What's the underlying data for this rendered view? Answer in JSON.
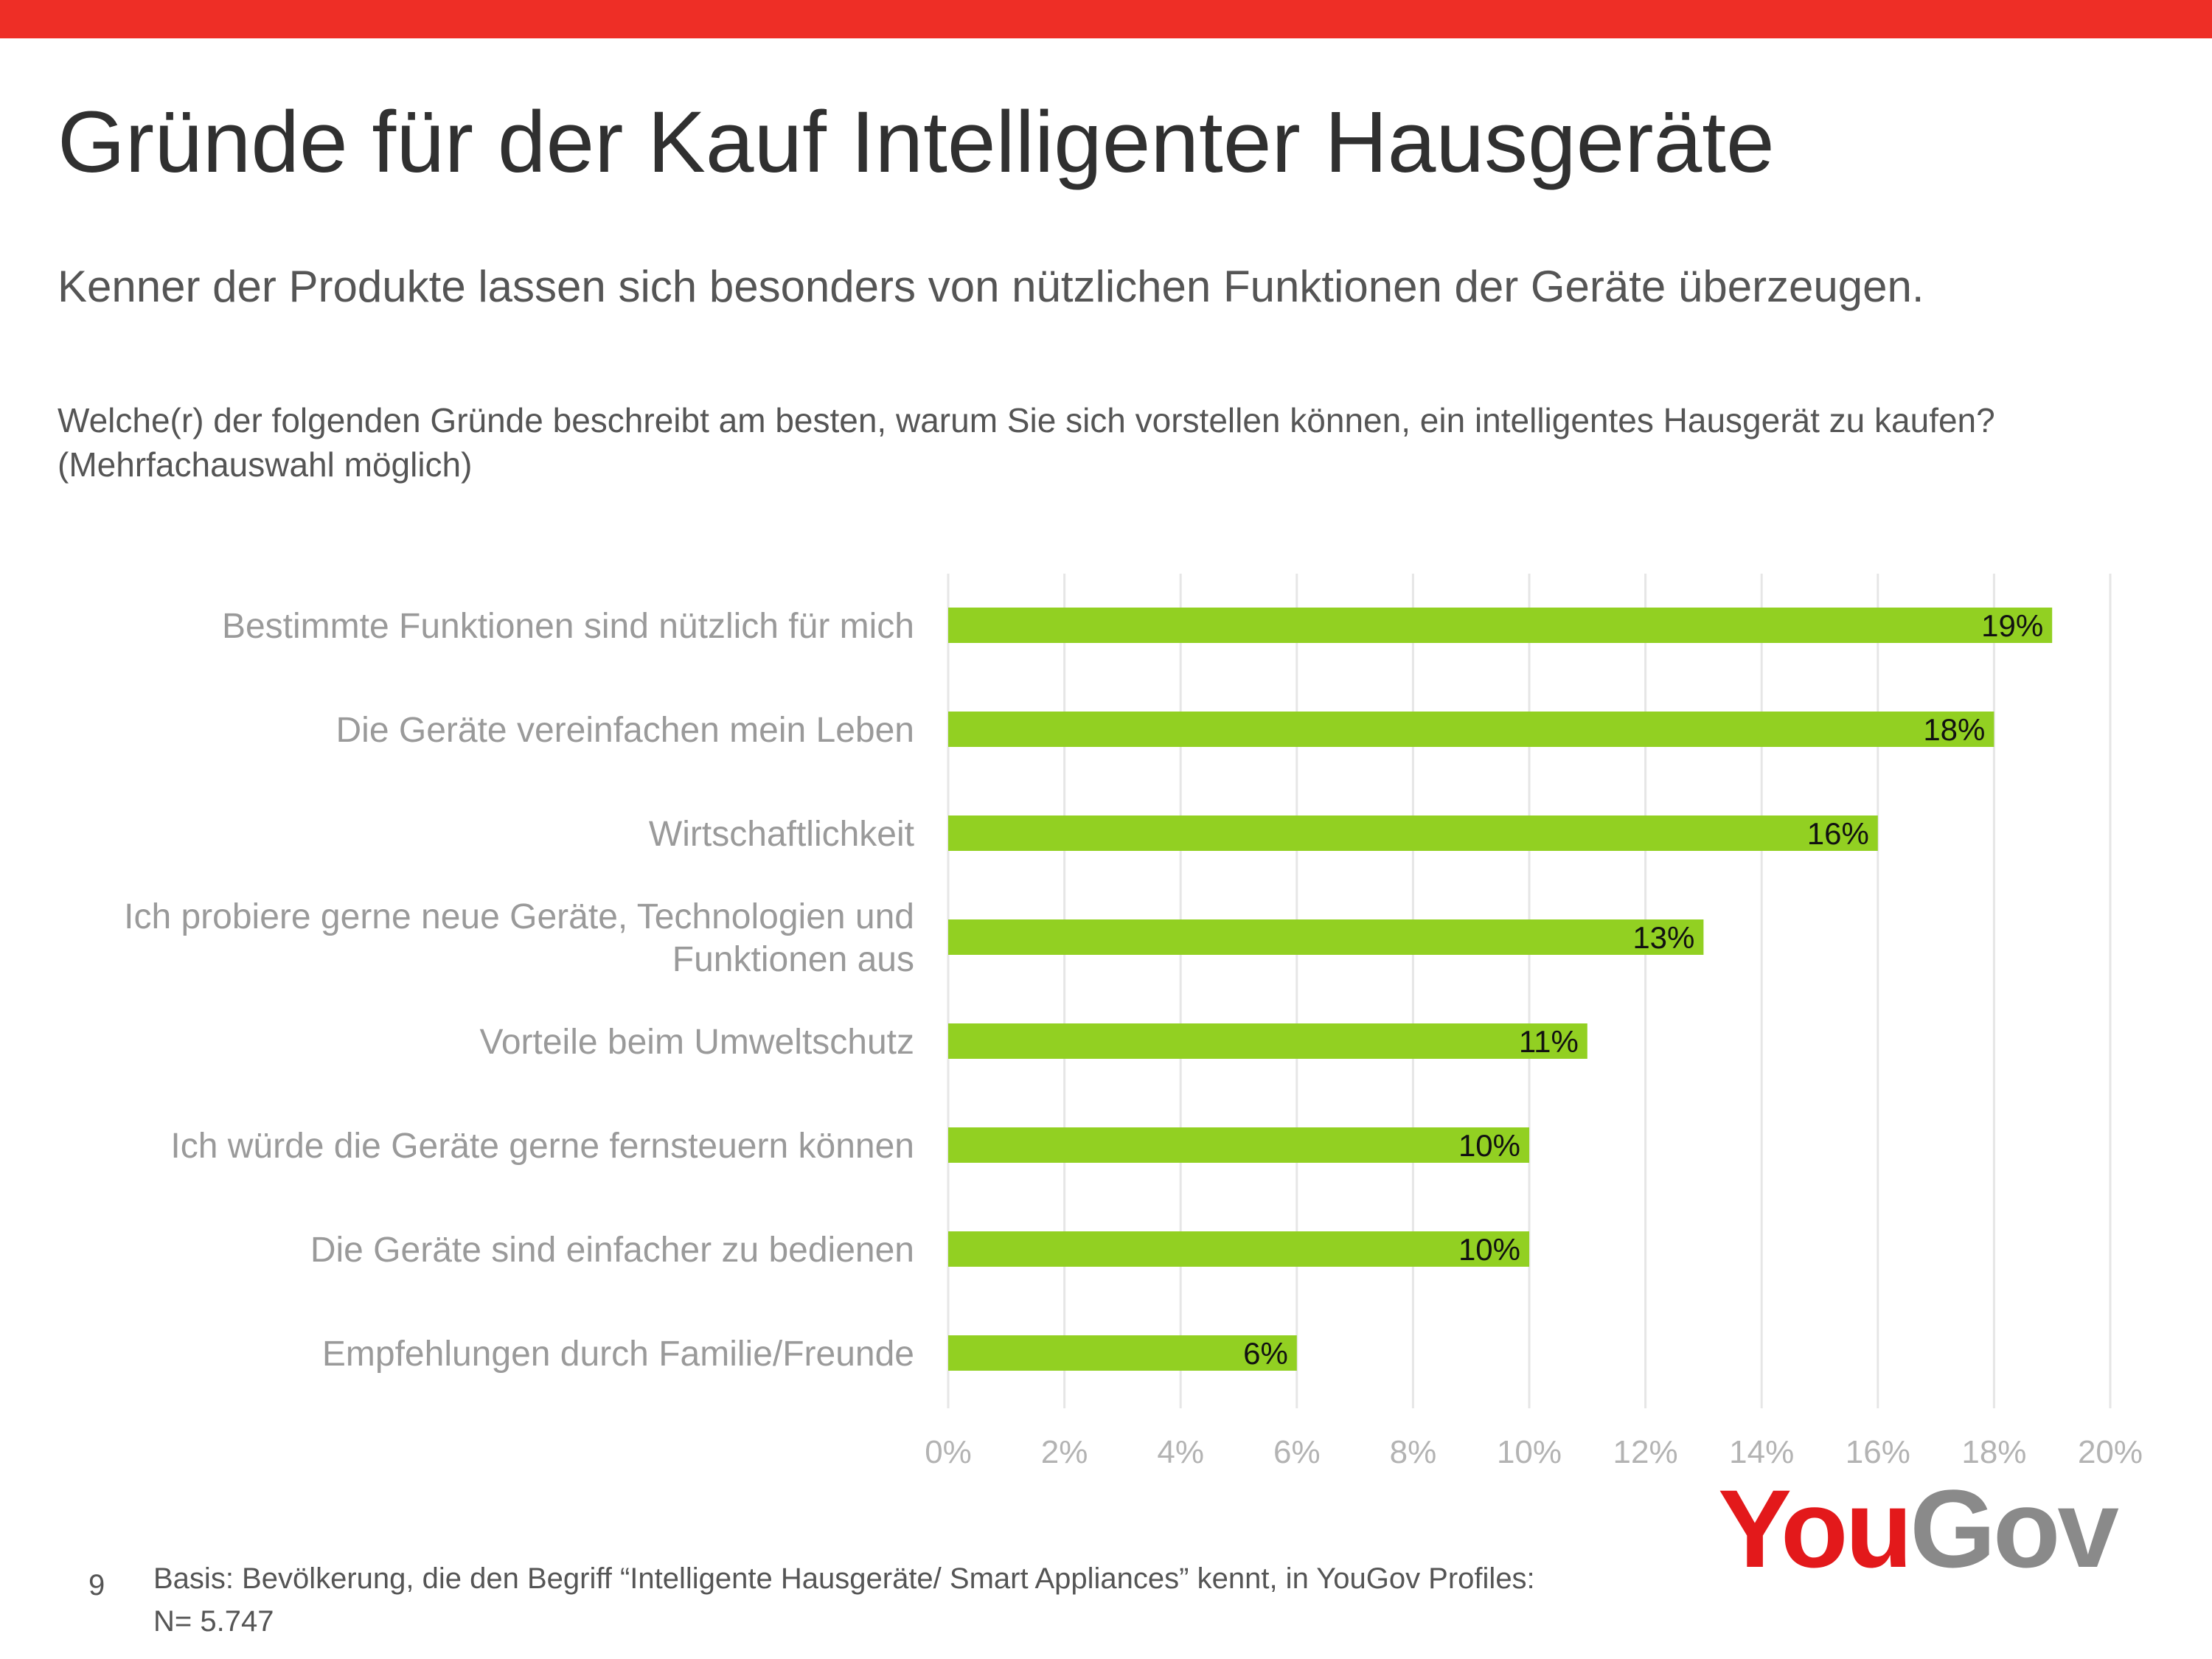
{
  "header": {
    "title": "Gründe für der Kauf Intelligenter Hausgeräte",
    "subtitle": "Kenner der Produkte lassen sich besonders von nützlichen Funktionen der Geräte überzeugen.",
    "question": "Welche(r) der folgenden Gründe beschreibt am besten, warum Sie sich vorstellen können, ein intelligentes Hausgerät zu kaufen? (Mehrfachauswahl möglich)"
  },
  "colors": {
    "accent_bar": "#ee2e26",
    "bar": "#92d022",
    "grid": "#e6e6e6"
  },
  "chart_data": {
    "type": "bar",
    "orientation": "horizontal",
    "title": "",
    "xlabel": "",
    "ylabel": "",
    "categories": [
      "Bestimmte Funktionen sind nützlich für mich",
      "Die Geräte vereinfachen mein Leben",
      "Wirtschaftlichkeit",
      "Ich probiere gerne neue Geräte, Technologien und Funktionen aus",
      "Vorteile beim Umweltschutz",
      "Ich würde die Geräte gerne fernsteuern können",
      "Die Geräte sind einfacher zu bedienen",
      "Empfehlungen durch Familie/Freunde"
    ],
    "category_lines": [
      [
        "Bestimmte Funktionen sind nützlich für mich"
      ],
      [
        "Die Geräte vereinfachen mein Leben"
      ],
      [
        "Wirtschaftlichkeit"
      ],
      [
        "Ich probiere gerne neue Geräte, Technologien und",
        "Funktionen aus"
      ],
      [
        "Vorteile beim Umweltschutz"
      ],
      [
        "Ich würde die Geräte gerne fernsteuern können"
      ],
      [
        "Die Geräte sind einfacher zu bedienen"
      ],
      [
        "Empfehlungen durch Familie/Freunde"
      ]
    ],
    "values": [
      19,
      18,
      16,
      13,
      11,
      10,
      10,
      6
    ],
    "value_labels": [
      "19%",
      "18%",
      "16%",
      "13%",
      "11%",
      "10%",
      "10%",
      "6%"
    ],
    "xlim": [
      0,
      20
    ],
    "ticks": [
      0,
      2,
      4,
      6,
      8,
      10,
      12,
      14,
      16,
      18,
      20
    ],
    "tick_labels": [
      "0%",
      "2%",
      "4%",
      "6%",
      "8%",
      "10%",
      "12%",
      "14%",
      "16%",
      "18%",
      "20%"
    ],
    "grid": true,
    "legend": "none"
  },
  "logo": {
    "part1": "You",
    "part2": "Gov"
  },
  "footer": {
    "page_number": "9",
    "source_line1": "Basis: Bevölkerung, die den Begriff “Intelligente Hausgeräte/ Smart Appliances” kennt, in YouGov Profiles:",
    "source_line2": "N= 5.747"
  }
}
